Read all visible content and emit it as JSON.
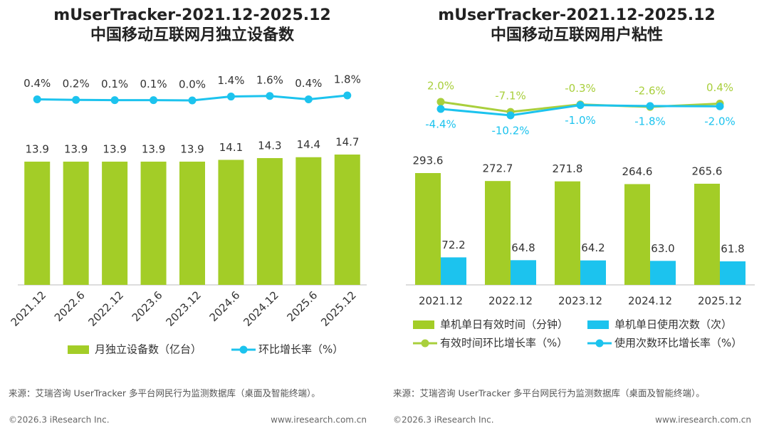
{
  "chart_data": [
    {
      "type": "bar",
      "title": "mUserTracker-2021.12-2025.12",
      "subtitle": "中国移动互联网月独立设备数",
      "categories": [
        "2021.12",
        "2022.6",
        "2022.12",
        "2023.6",
        "2023.12",
        "2024.6",
        "2024.12",
        "2025.6",
        "2025.12"
      ],
      "series": [
        {
          "name": "月独立设备数（亿台）",
          "type": "bar",
          "color": "#a3cd27",
          "values": [
            13.9,
            13.9,
            13.9,
            13.9,
            13.9,
            14.1,
            14.3,
            14.4,
            14.7
          ]
        },
        {
          "name": "环比增长率（%）",
          "type": "line",
          "axis": "y2",
          "color": "#1cc3ee",
          "values": [
            0.4,
            0.2,
            0.1,
            0.1,
            0.0,
            1.4,
            1.6,
            0.4,
            1.8
          ],
          "value_labels": [
            "0.4%",
            "0.2%",
            "0.1%",
            "0.1%",
            "0.0%",
            "1.4%",
            "1.6%",
            "0.4%",
            "1.8%"
          ]
        }
      ],
      "source": "来源：艾瑞咨询 UserTracker 多平台网民行为监测数据库（桌面及智能终端）。",
      "copyright": "©2026.3 iResearch Inc.",
      "website": "www.iresearch.com.cn"
    },
    {
      "type": "bar",
      "title": "mUserTracker-2021.12-2025.12",
      "subtitle": "中国移动互联网用户粘性",
      "categories": [
        "2021.12",
        "2022.12",
        "2023.12",
        "2024.12",
        "2025.12"
      ],
      "series": [
        {
          "name": "单机单日有效时间（分钟）",
          "type": "bar",
          "color": "#a3cd27",
          "values": [
            293.6,
            272.7,
            271.8,
            264.6,
            265.6
          ]
        },
        {
          "name": "单机单日使用次数（次）",
          "type": "bar",
          "color": "#1cc3ee",
          "values": [
            72.2,
            64.8,
            64.2,
            63.0,
            61.8
          ],
          "value_labels": [
            "72.2",
            "64.8",
            "64.2",
            "63.0",
            "61.8"
          ]
        },
        {
          "name": "有效时间环比增长率（%）",
          "type": "line",
          "axis": "y2",
          "color": "#a9cf3c",
          "values": [
            2.0,
            -7.1,
            -0.3,
            -2.6,
            0.4
          ],
          "value_labels": [
            "2.0%",
            "-7.1%",
            "-0.3%",
            "-2.6%",
            "0.4%"
          ]
        },
        {
          "name": "使用次数环比增长率（%）",
          "type": "line",
          "axis": "y2",
          "color": "#1cc3ee",
          "values": [
            -4.4,
            -10.2,
            -1.0,
            -1.8,
            -2.0
          ],
          "value_labels": [
            "-4.4%",
            "-10.2%",
            "-1.0%",
            "-1.8%",
            "-2.0%"
          ]
        }
      ],
      "source": "来源：艾瑞咨询 UserTracker 多平台网民行为监测数据库（桌面及智能终端）。",
      "copyright": "©2026.3 iResearch Inc.",
      "website": "www.iresearch.com.cn"
    }
  ]
}
